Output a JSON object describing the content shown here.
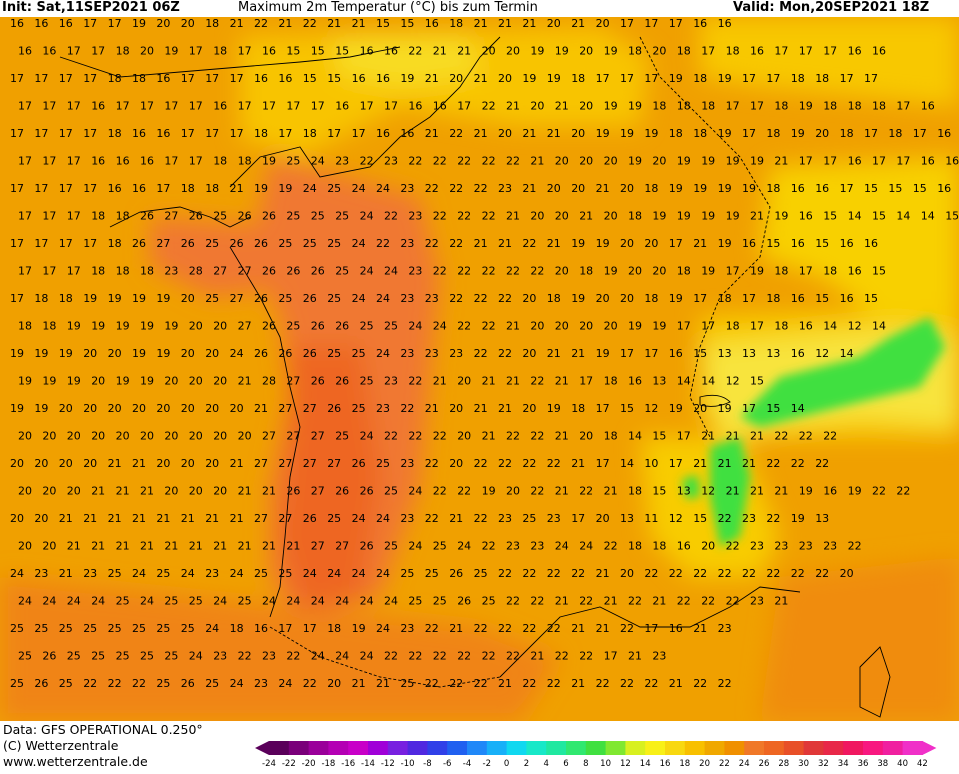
{
  "header": {
    "init": "Init: Sat,11SEP2021 06Z",
    "title": "Maximum 2m Temperatur (°C) bis zum Termin",
    "valid": "Valid: Mon,20SEP2021 18Z"
  },
  "footer": {
    "data_line": "Data: GFS OPERATIONAL 0.250°",
    "copyright": "(C) Wetterzentrale",
    "url": "www.wetterzentrale.de"
  },
  "colors": {
    "map_base": "#f0a000",
    "warm_core": "#f07830",
    "hot_core": "#ee6622",
    "cool_yellow": "#f8d000",
    "pale_yellow": "#f8e83c",
    "alpine_green": "#40e040",
    "coastline": "#000000"
  },
  "legend": {
    "unit": "°C",
    "ticks": [
      "-24",
      "-22",
      "-20",
      "-18",
      "-16",
      "-14",
      "-12",
      "-10",
      "-8",
      "-6",
      "-4",
      "-2",
      "0",
      "2",
      "4",
      "6",
      "8",
      "10",
      "12",
      "14",
      "16",
      "18",
      "20",
      "22",
      "24",
      "26",
      "28",
      "30",
      "32",
      "34",
      "36",
      "38",
      "40",
      "42"
    ],
    "colors": [
      "#5a005a",
      "#7a007a",
      "#9a009a",
      "#b400b4",
      "#c800c8",
      "#a000d8",
      "#7820e0",
      "#5028e0",
      "#3040e8",
      "#2060f0",
      "#2088f8",
      "#18b0f8",
      "#10d8f0",
      "#18e8c8",
      "#20e8a0",
      "#30e870",
      "#40e040",
      "#80e830",
      "#d8f020",
      "#f8f018",
      "#f8d810",
      "#f8c000",
      "#f0a800",
      "#f09000",
      "#f07828",
      "#ee6622",
      "#e85028",
      "#e03838",
      "#e82848",
      "#f01860",
      "#f81880",
      "#f020a0",
      "#f030c8"
    ]
  },
  "grid_rows": [
    "16 16 16 17 17 19 20 20 18 21 22 21 22 21 21 15 15 16 18 21 21 21 20 21 20 17 17 17 16 16",
    "16 16 17 17 18 20 19 17 18 17 16 15 15 15 16 16 22 21 21 20 20 19 19 20 19 18 20 18 17 18 16 17 17 17 16 16",
    "17 17 17 17 18 18 16 17 17 17 16 16 15 15 16 16 19 21 20 21 20 19 19 18 17 17 17 19 18 19 17 17 18 18 17 17",
    "17 17 17 16 17 17 17 17 16 17 17 17 17 16 17 17 16 16 17 22 21 20 21 20 19 19 18 18 18 17 17 18 19 18 18 18 17 16",
    "17 17 17 17 18 16 16 17 17 17 18 17 18 17 17 16 16 21 22 21 20 21 21 20 19 19 19 18 18 19 17 18 19 20 18 17 18 17 16 17",
    "17 17 17 16 16 16 17 17 18 18 19 25 24 23 22 23 22 22 22 22 22 21 20 20 20 19 20 19 19 19 19 21 17 17 16 17 17 16 16",
    "17 17 17 17 16 16 17 18 18 21 19 19 24 25 24 24 23 22 22 22 23 21 20 20 21 20 18 19 19 19 19 18 16 16 17 15 15 15 16",
    "17 17 17 18 18 26 27 26 25 26 26 25 25 25 24 22 23 22 22 22 21 20 20 21 20 18 19 19 19 19 21 19 16 15 14 15 14 14 15",
    "17 17 17 17 18 26 27 26 25 26 26 25 25 25 24 22 23 22 22 21 21 22 21 19 19 20 20 17 21 19 16 15 16 15 16 16",
    "17 17 17 18 18 18 23 28 27 27 26 26 26 25 24 24 23 22 22 22 22 22 20 18 19 20 20 18 19 17 19 18 17 18 16 15",
    "17 18 18 19 19 19 19 20 25 27 26 25 26 25 24 24 23 23 22 22 22 20 18 19 20 20 18 19 17 18 17 18 16 15 16 15",
    "18 18 19 19 19 19 19 20 20 27 26 25 26 26 25 25 24 24 22 22 21 20 20 20 20 19 19 17 17 18 17 18 16 14 12 14",
    "19 19 19 20 20 19 19 20 20 24 26 26 26 25 25 24 23 23 23 22 22 20 21 21 19 17 17 16 15 13 13 13 16 12 14",
    "19 19 19 20 19 19 20 20 20 21 28 27 26 26 25 23 22 21 20 21 21 22 21 17 18 16 13 14 14 12 15",
    "19 19 20 20 20 20 20 20 20 20 21 27 27 26 25 23 22 21 20 21 21 20 19 18 17 15 12 19 20 19 17 15 14",
    "20 20 20 20 20 20 20 20 20 20 27 27 27 25 24 22 22 22 20 21 22 22 21 20 18 14 15 17 21 21 21 22 22 22",
    "20 20 20 20 21 21 20 20 20 21 27 27 27 27 26 25 23 22 20 22 22 22 22 21 17 14 10 17 21 21 21 22 22 22",
    "20 20 20 21 21 21 20 20 20 21 21 26 27 26 26 25 24 22 22 19 20 22 21 22 21 18 15 13 12 21 21 21 19 16 19 22 22",
    "20 20 21 21 21 21 21 21 21 21 27 27 26 25 24 24 23 22 21 22 23 25 23 17 20 13 11 12 15 22 23 22 19 13",
    "20 20 21 21 21 21 21 21 21 21 21 21 27 27 26 25 24 25 24 22 23 23 24 24 22 18 18 16 20 22 23 23 23 23 22",
    "24 23 21 23 25 24 25 24 23 24 25 25 24 24 24 24 25 25 26 25 22 22 22 22 21 20 22 22 22 22 22 22 22 22 20",
    "24 24 24 24 25 24 25 25 24 25 24 24 24 24 24 24 25 25 26 25 22 22 21 22 21 22 21 22 22 22 23 21",
    "25 25 25 25 25 25 25 25 24 18 16 17 17 18 19 24 23 22 21 22 22 22 22 21 21 22 17 16 21 23",
    "25 26 25 25 25 25 25 24 23 22 23 22 24 24 24 22 22 22 22 22 22 21 22 22 17 21 23",
    "25 26 25 22 22 22 25 26 25 24 23 24 22 20 21 21 25 22 22 22 21 22 22 21 22 22 22 21 22 22"
  ]
}
